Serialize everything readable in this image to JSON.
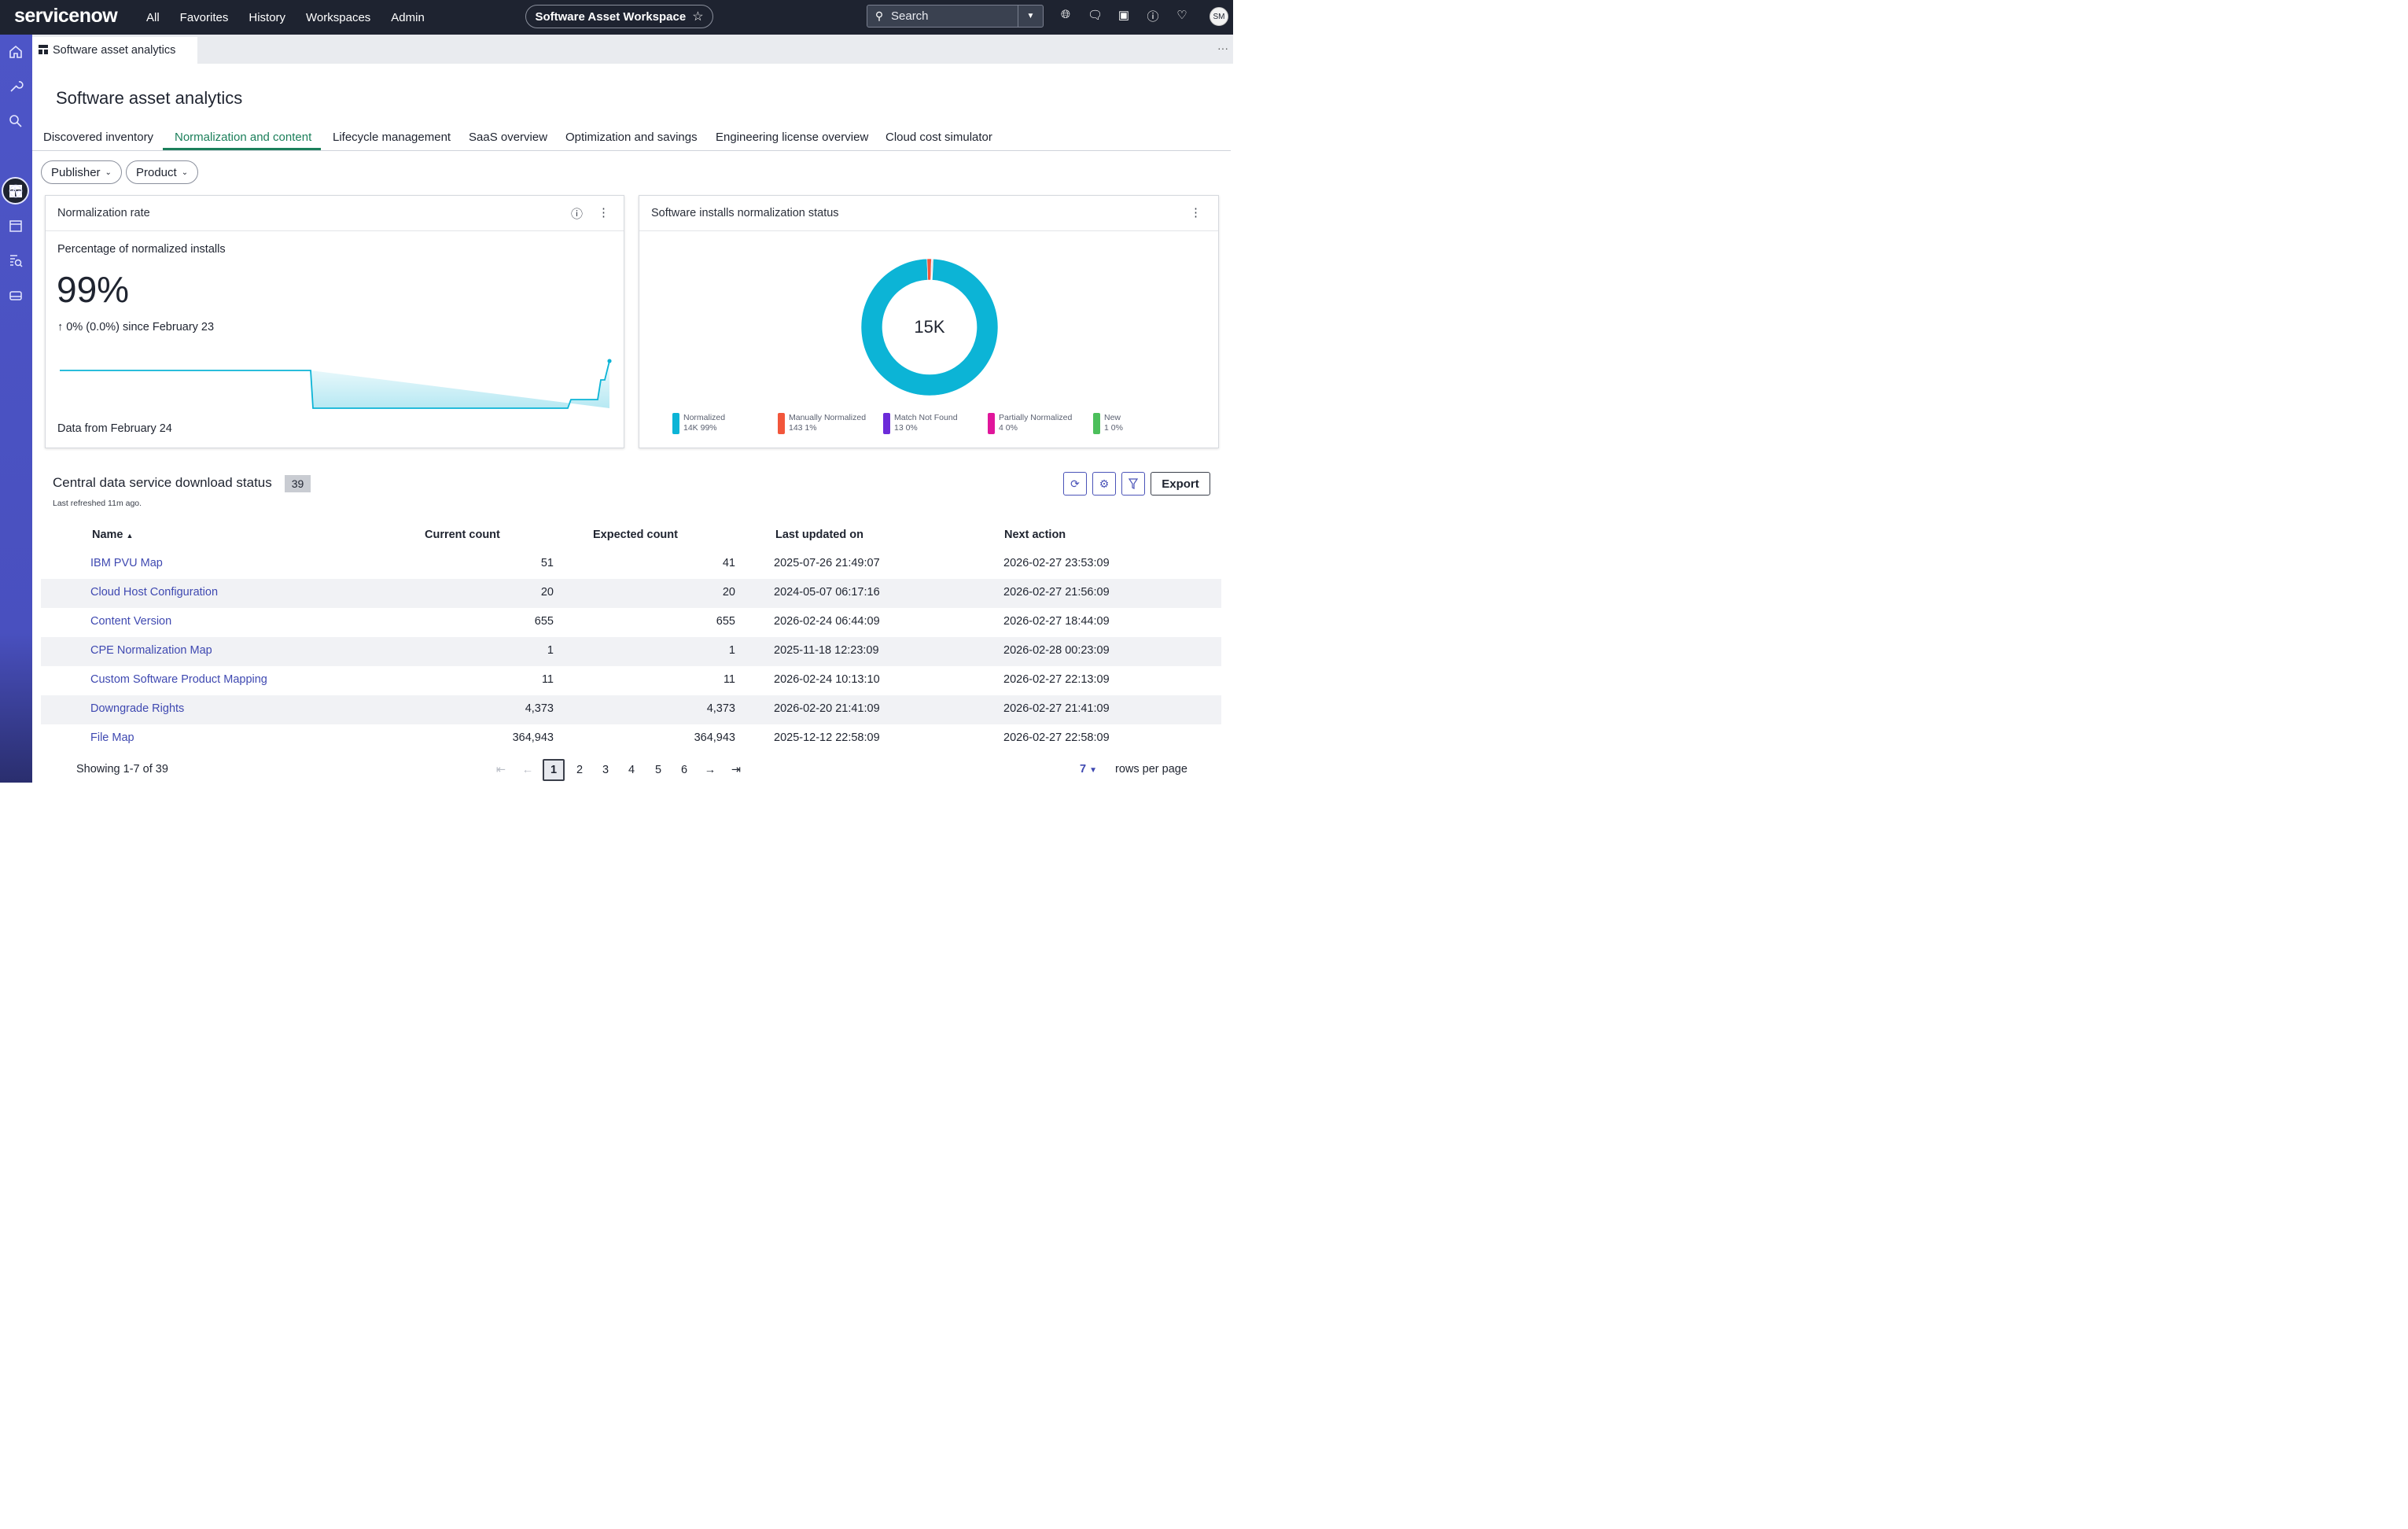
{
  "topbar": {
    "logo": "servicenow",
    "nav": [
      "All",
      "Favorites",
      "History",
      "Workspaces",
      "Admin"
    ],
    "workspace": "Software Asset Workspace",
    "search_label": "Search",
    "avatar_initials": "SM",
    "icons": [
      "globe-icon",
      "chat-icon",
      "screen-icon",
      "help-icon",
      "bell-icon"
    ]
  },
  "rail": {
    "icons": [
      "home-icon",
      "wrench-icon",
      "search-tag-icon",
      "dashboard-icon",
      "activity-icon",
      "calendar-icon",
      "report-search-icon",
      "storage-icon"
    ],
    "active": "dashboard-icon"
  },
  "app_tab": {
    "label": "Software asset analytics",
    "more": "···"
  },
  "page": {
    "title": "Software asset analytics"
  },
  "tabs": [
    {
      "label": "Discovered inventory"
    },
    {
      "label": "Normalization and content",
      "active": true
    },
    {
      "label": "Lifecycle management"
    },
    {
      "label": "SaaS overview"
    },
    {
      "label": "Optimization and savings"
    },
    {
      "label": "Engineering license overview"
    },
    {
      "label": "Cloud cost simulator"
    }
  ],
  "filters": {
    "publisher": "Publisher",
    "product": "Product"
  },
  "normalization_card": {
    "title": "Normalization rate",
    "subtitle": "Percentage of normalized installs",
    "value": "99%",
    "change": "0% (0.0%) since February 23",
    "footer": "Data from February 24"
  },
  "status_card": {
    "title": "Software installs normalization status",
    "total": "15K",
    "legend": [
      {
        "label": "Normalized",
        "value": "14K 99%",
        "color": "#0cb4d6"
      },
      {
        "label": "Manually Normalized",
        "value": "143 1%",
        "color": "#f2563b"
      },
      {
        "label": "Match Not Found",
        "value": "13 0%",
        "color": "#6c2bd9"
      },
      {
        "label": "Partially Normalized",
        "value": "4 0%",
        "color": "#e0169b"
      },
      {
        "label": "New",
        "value": "1 0%",
        "color": "#4cbf5b"
      }
    ]
  },
  "chart_data": {
    "type": "pie",
    "title": "Software installs normalization status",
    "categories": [
      "Normalized",
      "Manually Normalized",
      "Match Not Found",
      "Partially Normalized",
      "New"
    ],
    "values": [
      14000,
      143,
      13,
      4,
      1
    ],
    "colors": [
      "#0cb4d6",
      "#f2563b",
      "#6c2bd9",
      "#e0169b",
      "#4cbf5b"
    ],
    "center_label": "15K"
  },
  "list": {
    "title": "Central data service download status",
    "count": "39",
    "refreshed": "Last refreshed 11m ago.",
    "export": "Export",
    "columns": [
      "Name",
      "Current count",
      "Expected count",
      "Last updated on",
      "Next action"
    ],
    "rows": [
      {
        "name": "IBM PVU Map",
        "current": "51",
        "expected": "41",
        "updated": "2025-07-26 21:49:07",
        "next": "2026-02-27 23:53:09"
      },
      {
        "name": "Cloud Host Configuration",
        "current": "20",
        "expected": "20",
        "updated": "2024-05-07 06:17:16",
        "next": "2026-02-27 21:56:09"
      },
      {
        "name": "Content Version",
        "current": "655",
        "expected": "655",
        "updated": "2026-02-24 06:44:09",
        "next": "2026-02-27 18:44:09"
      },
      {
        "name": "CPE Normalization Map",
        "current": "1",
        "expected": "1",
        "updated": "2025-11-18 12:23:09",
        "next": "2026-02-28 00:23:09"
      },
      {
        "name": "Custom Software Product Mapping",
        "current": "11",
        "expected": "11",
        "updated": "2026-02-24 10:13:10",
        "next": "2026-02-27 22:13:09"
      },
      {
        "name": "Downgrade Rights",
        "current": "4,373",
        "expected": "4,373",
        "updated": "2026-02-20 21:41:09",
        "next": "2026-02-27 21:41:09"
      },
      {
        "name": "File Map",
        "current": "364,943",
        "expected": "364,943",
        "updated": "2025-12-12 22:58:09",
        "next": "2026-02-27 22:58:09"
      }
    ],
    "showing": "Showing 1-7 of 39",
    "pages": [
      "1",
      "2",
      "3",
      "4",
      "5",
      "6"
    ],
    "current_page": "1",
    "rows_per_page": "7",
    "rows_per_page_label": "rows per page"
  }
}
